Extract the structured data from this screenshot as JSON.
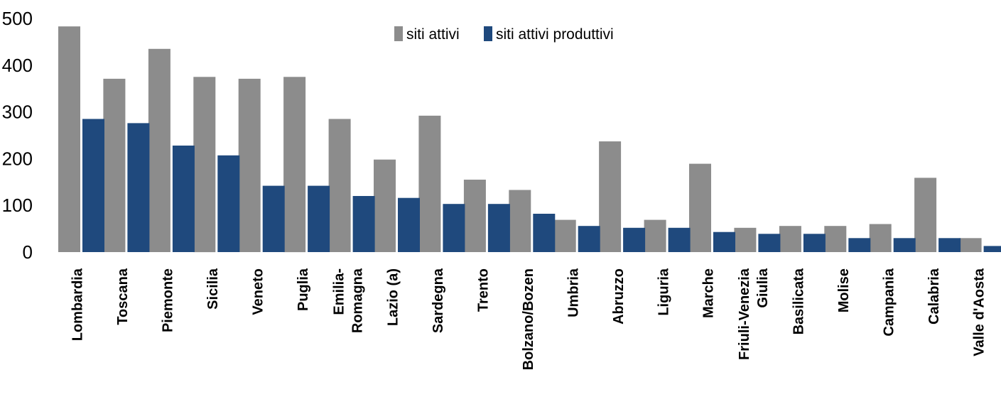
{
  "chart_data": {
    "type": "bar",
    "categories": [
      [
        "Lombardia"
      ],
      [
        "Toscana"
      ],
      [
        "Piemonte"
      ],
      [
        "Sicilia"
      ],
      [
        "Veneto"
      ],
      [
        "Puglia"
      ],
      [
        "Emilia-",
        "Romagna"
      ],
      [
        "Lazio (a)"
      ],
      [
        "Sardegna"
      ],
      [
        "Trento"
      ],
      [
        "Bolzano/Bozen"
      ],
      [
        "Umbria"
      ],
      [
        "Abruzzo"
      ],
      [
        "Liguria"
      ],
      [
        "Marche"
      ],
      [
        "Friuli-Venezia",
        "Giulia"
      ],
      [
        "Basilicata"
      ],
      [
        "Molise"
      ],
      [
        "Campania"
      ],
      [
        "Calabria"
      ],
      [
        "Valle d'Aosta"
      ]
    ],
    "series": [
      {
        "name": "siti attivi",
        "color": "#8c8c8c",
        "values": [
          483,
          371,
          435,
          375,
          371,
          375,
          285,
          198,
          292,
          155,
          133,
          69,
          237,
          69,
          189,
          52,
          56,
          56,
          60,
          159,
          30
        ]
      },
      {
        "name": "siti attivi produttivi",
        "color": "#1f497d",
        "values": [
          285,
          276,
          228,
          207,
          142,
          142,
          120,
          116,
          103,
          103,
          82,
          56,
          52,
          52,
          43,
          39,
          39,
          30,
          30,
          30,
          13
        ]
      }
    ],
    "ylim": [
      0,
      500
    ],
    "yticks": [
      0,
      100,
      200,
      300,
      400,
      500
    ],
    "title": "",
    "xlabel": "",
    "ylabel": "",
    "grid": false,
    "legend_position": "top-center"
  }
}
